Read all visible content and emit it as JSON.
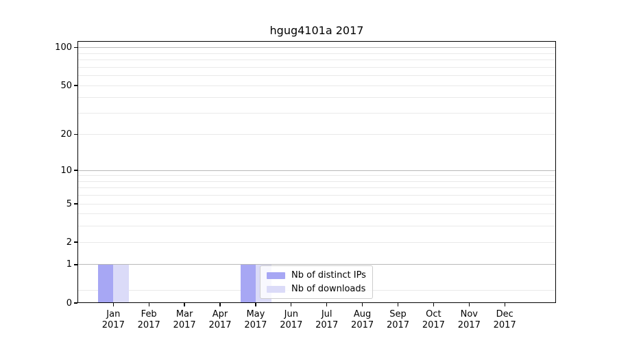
{
  "chart_data": {
    "type": "bar",
    "title": "hgug4101a 2017",
    "x": {
      "months": [
        "Jan",
        "Feb",
        "Mar",
        "Apr",
        "May",
        "Jun",
        "Jul",
        "Aug",
        "Sep",
        "Oct",
        "Nov",
        "Dec"
      ],
      "year": "2017"
    },
    "series": [
      {
        "name": "Nb of distinct IPs",
        "color": "#a7a7f4",
        "values": [
          1,
          0,
          0,
          0,
          1,
          0,
          0,
          0,
          0,
          0,
          0,
          0
        ]
      },
      {
        "name": "Nb of downloads",
        "color": "#dbdbf8",
        "values": [
          1,
          0,
          0,
          0,
          1,
          0,
          0,
          0,
          0,
          0,
          0,
          0
        ]
      }
    ],
    "y_axis": {
      "scale": "log10(1+x)",
      "ticks": [
        0,
        1,
        2,
        5,
        10,
        20,
        50,
        100
      ],
      "minor_gridlines": [
        0.25,
        3,
        4,
        6,
        7,
        8,
        9,
        30,
        40,
        60,
        70,
        80,
        90
      ],
      "emphasized_gridlines": [
        1,
        10,
        100
      ],
      "ylim": [
        0,
        113
      ]
    },
    "legend": {
      "position": "lower-center",
      "entries": [
        "Nb of distinct IPs",
        "Nb of downloads"
      ]
    },
    "grid": "horizontal",
    "colors": {
      "major_grid": "#b8b8b8",
      "minor_grid": "#e9e9e9",
      "axis": "#000000",
      "text": "#000000",
      "legend_border": "#cccccc",
      "background": "#ffffff"
    }
  }
}
